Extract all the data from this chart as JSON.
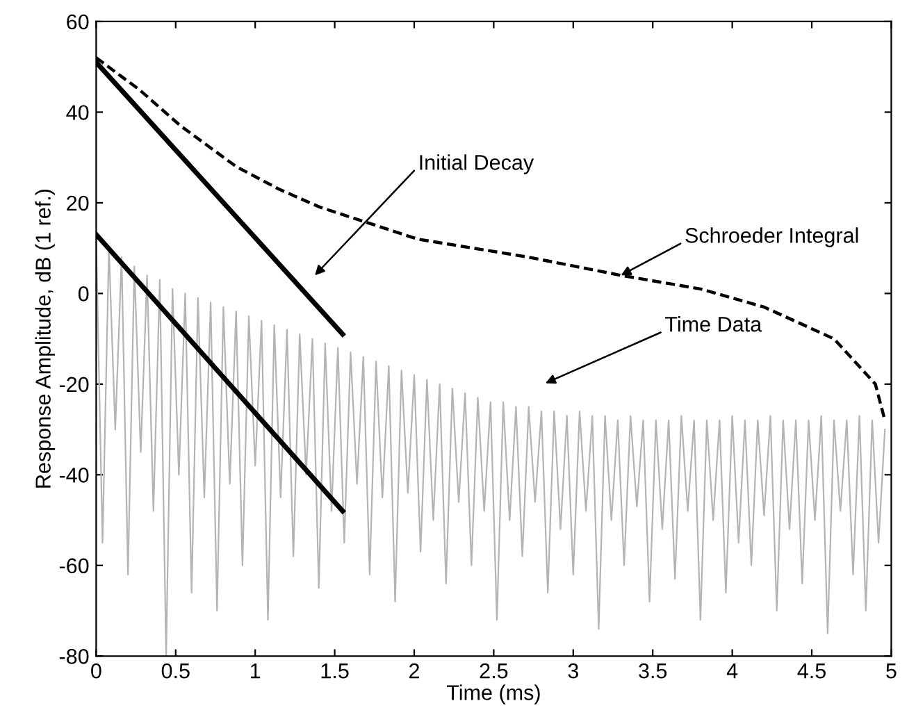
{
  "chart_data": {
    "type": "line",
    "xlabel": "Time (ms)",
    "ylabel": "Response Amplitude, dB (1 ref.)",
    "xlim": [
      0,
      5
    ],
    "ylim": [
      -80,
      60
    ],
    "xticks": [
      0,
      0.5,
      1,
      1.5,
      2,
      2.5,
      3,
      3.5,
      4,
      4.5,
      5
    ],
    "yticks": [
      -80,
      -60,
      -40,
      -20,
      0,
      20,
      40,
      60
    ],
    "grid": false,
    "legend": false,
    "series": [
      {
        "color": "#b4b4b4",
        "line_style": "solid",
        "x": [
          0,
          0.04,
          0.08,
          0.12,
          0.16,
          0.2,
          0.24,
          0.28,
          0.32,
          0.36,
          0.4,
          0.44,
          0.48,
          0.52,
          0.56,
          0.6,
          0.64,
          0.68,
          0.72,
          0.76,
          0.8,
          0.84,
          0.88,
          0.92,
          0.96,
          1,
          1.04,
          1.08,
          1.12,
          1.16,
          1.2,
          1.24,
          1.28,
          1.32,
          1.36,
          1.4,
          1.44,
          1.48,
          1.52,
          1.56,
          1.6,
          1.64,
          1.68,
          1.72,
          1.76,
          1.8,
          1.84,
          1.88,
          1.92,
          1.96,
          2,
          2.04,
          2.08,
          2.12,
          2.16,
          2.2,
          2.24,
          2.28,
          2.32,
          2.36,
          2.4,
          2.44,
          2.48,
          2.52,
          2.56,
          2.6,
          2.64,
          2.68,
          2.72,
          2.76,
          2.8,
          2.84,
          2.88,
          2.92,
          2.96,
          3,
          3.04,
          3.08,
          3.12,
          3.16,
          3.2,
          3.24,
          3.28,
          3.32,
          3.36,
          3.4,
          3.44,
          3.48,
          3.52,
          3.56,
          3.6,
          3.64,
          3.68,
          3.72,
          3.76,
          3.8,
          3.84,
          3.88,
          3.92,
          3.96,
          4,
          4.04,
          4.08,
          4.12,
          4.16,
          4.2,
          4.24,
          4.28,
          4.32,
          4.36,
          4.4,
          4.44,
          4.48,
          4.52,
          4.56,
          4.6,
          4.64,
          4.68,
          4.72,
          4.76,
          4.8,
          4.84,
          4.88,
          4.92,
          4.96
        ],
        "values": [
          12,
          -55,
          10,
          -30,
          8,
          -62,
          6,
          -35,
          4,
          -48,
          3,
          -80,
          1,
          -40,
          0,
          -66,
          -1,
          -45,
          -2,
          -70,
          -3,
          -42,
          -4,
          -60,
          -5,
          -38,
          -6,
          -72,
          -7,
          -45,
          -8,
          -58,
          -9,
          -40,
          -10,
          -65,
          -11,
          -48,
          -12,
          -55,
          -13,
          -42,
          -14,
          -62,
          -15,
          -45,
          -16,
          -68,
          -17,
          -44,
          -18,
          -57,
          -19,
          -50,
          -20,
          -64,
          -21,
          -46,
          -22,
          -60,
          -23,
          -48,
          -24,
          -72,
          -24,
          -50,
          -25,
          -58,
          -25,
          -46,
          -26,
          -66,
          -26,
          -52,
          -27,
          -62,
          -26,
          -48,
          -27,
          -74,
          -27,
          -50,
          -28,
          -60,
          -27,
          -47,
          -28,
          -68,
          -28,
          -52,
          -28,
          -63,
          -27,
          -48,
          -28,
          -72,
          -28,
          -50,
          -28,
          -66,
          -27,
          -55,
          -28,
          -60,
          -28,
          -49,
          -27,
          -70,
          -28,
          -52,
          -28,
          -64,
          -28,
          -50,
          -27,
          -75,
          -28,
          -48,
          -28,
          -62,
          -27,
          -70,
          -28,
          -55,
          -30
        ]
      },
      {
        "color": "#000000",
        "line_style": "dashed",
        "x": [
          0,
          0.27,
          0.53,
          0.88,
          1.15,
          1.41,
          1.76,
          2.02,
          2.72,
          3.3,
          3.8,
          4.2,
          4.64,
          4.9,
          4.96
        ],
        "values": [
          52,
          45,
          37,
          28,
          23,
          19,
          15,
          12,
          8,
          4,
          1,
          -3,
          -10,
          -20,
          -28
        ]
      },
      {
        "color": "#000000",
        "line_style": "solid",
        "x": [
          0,
          1.55
        ],
        "values": [
          51,
          -9
        ]
      },
      {
        "color": "#000000",
        "line_style": "solid",
        "x": [
          0,
          1.55
        ],
        "values": [
          13,
          -48
        ]
      }
    ],
    "annotations": [
      "Initial Decay",
      {
        "text": "Schroeder Integral",
        "x": 3.3,
        "y": 4
      },
      "Time Data"
    ]
  }
}
